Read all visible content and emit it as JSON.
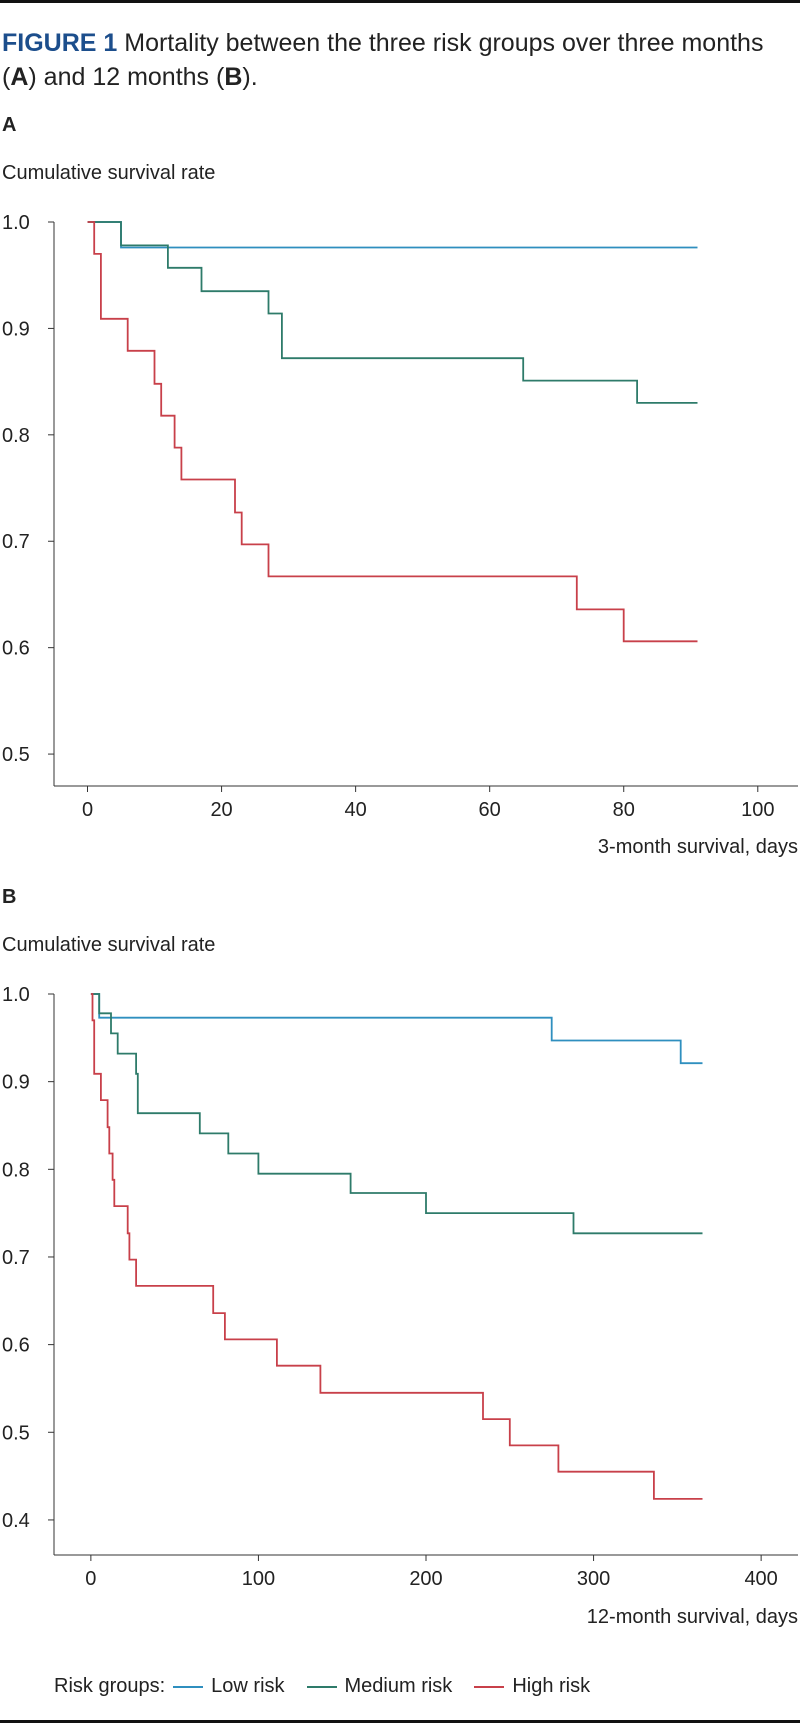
{
  "figure": {
    "label": "FIGURE 1",
    "title_text": "Mortality between the three risk groups over three months (",
    "mark_a": "A",
    "mid_text": ") and 12 months (",
    "mark_b": "B",
    "end_text": ")."
  },
  "legend": {
    "title": "Risk groups:",
    "items": [
      "Low risk",
      "Medium risk",
      "High risk"
    ]
  },
  "colors": {
    "low": "#2f8fbf",
    "medium": "#2e7b6a",
    "high": "#c8404a"
  },
  "chart_data": [
    {
      "panel": "A",
      "type": "line",
      "step": true,
      "ylabel": "Cumulative survival rate",
      "xlabel": "3-month survival, days",
      "xlim": [
        -5,
        106
      ],
      "ylim": [
        0.47,
        1.0
      ],
      "xticks": [
        0,
        20,
        40,
        60,
        80,
        100
      ],
      "xtick_labels": [
        "0",
        "20",
        "40",
        "60",
        "80",
        "100"
      ],
      "yticks": [
        0.5,
        0.6,
        0.7,
        0.8,
        0.9,
        1.0
      ],
      "ytick_labels": [
        "0.5",
        "0.6",
        "0.7",
        "0.8",
        "0.9",
        "1.0"
      ],
      "series": [
        {
          "name": "Low risk",
          "key": "low",
          "x": [
            0,
            5,
            91
          ],
          "y": [
            1.0,
            0.976,
            0.976
          ]
        },
        {
          "name": "Medium risk",
          "key": "medium",
          "x": [
            0,
            5,
            12,
            17,
            27,
            29,
            65,
            82,
            91
          ],
          "y": [
            1.0,
            0.978,
            0.957,
            0.935,
            0.914,
            0.872,
            0.851,
            0.83,
            0.83
          ]
        },
        {
          "name": "High risk",
          "key": "high",
          "x": [
            0,
            1,
            2,
            6,
            10,
            11,
            13,
            14,
            22,
            23,
            27,
            73,
            80,
            91
          ],
          "y": [
            1.0,
            0.97,
            0.909,
            0.879,
            0.848,
            0.818,
            0.788,
            0.758,
            0.727,
            0.697,
            0.667,
            0.636,
            0.606,
            0.606
          ]
        }
      ]
    },
    {
      "panel": "B",
      "type": "line",
      "step": true,
      "ylabel": "Cumulative survival rate",
      "xlabel": "12-month survival, days",
      "xlim": [
        -22,
        422
      ],
      "ylim": [
        0.36,
        1.0
      ],
      "xticks": [
        0,
        100,
        200,
        300,
        400
      ],
      "xtick_labels": [
        "0",
        "100",
        "200",
        "300",
        "400"
      ],
      "yticks": [
        0.4,
        0.5,
        0.6,
        0.7,
        0.8,
        0.9,
        1.0
      ],
      "ytick_labels": [
        "0.4",
        "0.5",
        "0.6",
        "0.7",
        "0.8",
        "0.9",
        "1.0"
      ],
      "series": [
        {
          "name": "Low risk",
          "key": "low",
          "x": [
            0,
            5,
            275,
            352,
            365
          ],
          "y": [
            1.0,
            0.973,
            0.947,
            0.921,
            0.921
          ]
        },
        {
          "name": "Medium risk",
          "key": "medium",
          "x": [
            0,
            5,
            12,
            16,
            27,
            28,
            65,
            82,
            100,
            155,
            200,
            288,
            365
          ],
          "y": [
            1.0,
            0.978,
            0.955,
            0.932,
            0.909,
            0.864,
            0.841,
            0.818,
            0.795,
            0.773,
            0.75,
            0.727,
            0.727
          ]
        },
        {
          "name": "High risk",
          "key": "high",
          "x": [
            0,
            1,
            2,
            6,
            10,
            11,
            13,
            14,
            22,
            23,
            27,
            73,
            80,
            111,
            137,
            234,
            250,
            279,
            336,
            365
          ],
          "y": [
            1.0,
            0.97,
            0.909,
            0.879,
            0.848,
            0.818,
            0.788,
            0.758,
            0.727,
            0.697,
            0.667,
            0.636,
            0.606,
            0.576,
            0.545,
            0.515,
            0.485,
            0.455,
            0.424,
            0.424
          ]
        }
      ]
    }
  ]
}
